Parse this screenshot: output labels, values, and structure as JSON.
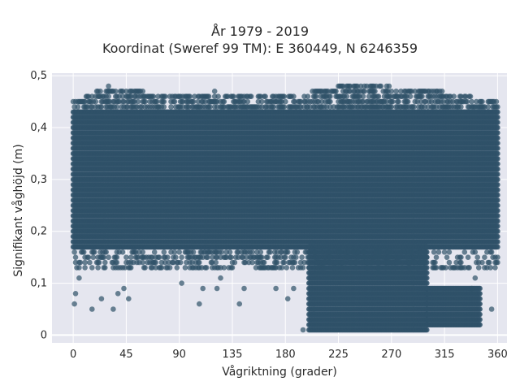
{
  "chart_data": {
    "type": "scatter",
    "title_line1": "År 1979 - 2019",
    "title_line2": "Koordinat (Sweref 99 TM): E 360449, N 6246359",
    "xlabel": "Vågriktning (grader)",
    "ylabel": "Signifikant våghöjd (m)",
    "xlim": [
      -18,
      368
    ],
    "ylim": [
      -0.015,
      0.505
    ],
    "x_ticks": [
      "0",
      "45",
      "90",
      "135",
      "180",
      "225",
      "270",
      "315",
      "360"
    ],
    "x_tick_values": [
      0,
      45,
      90,
      135,
      180,
      225,
      270,
      315,
      360
    ],
    "y_ticks": [
      "0",
      "0,1",
      "0,2",
      "0,3",
      "0,4",
      "0,5"
    ],
    "y_tick_values": [
      0,
      0.1,
      0.2,
      0.3,
      0.4,
      0.5
    ],
    "grid": true,
    "marker_color": "#2f5168",
    "plot_background": "#e5e6ef",
    "x_step_deg": 1,
    "dense_bands": [
      {
        "x_from": 0,
        "x_to": 360,
        "y_from": 0.17,
        "y_to": 0.43
      },
      {
        "x_from": 200,
        "x_to": 300,
        "y_from": 0.01,
        "y_to": 0.17
      },
      {
        "x_from": 300,
        "x_to": 345,
        "y_from": 0.02,
        "y_to": 0.09
      }
    ],
    "upper_envelope": [
      {
        "x": 0,
        "y": 0.45
      },
      {
        "x": 30,
        "y": 0.48
      },
      {
        "x": 60,
        "y": 0.47
      },
      {
        "x": 90,
        "y": 0.46
      },
      {
        "x": 120,
        "y": 0.47
      },
      {
        "x": 180,
        "y": 0.46
      },
      {
        "x": 225,
        "y": 0.48
      },
      {
        "x": 270,
        "y": 0.48
      },
      {
        "x": 315,
        "y": 0.47
      },
      {
        "x": 360,
        "y": 0.45
      }
    ],
    "scattered_low_points": [
      {
        "x": 1,
        "y": 0.06
      },
      {
        "x": 2,
        "y": 0.08
      },
      {
        "x": 5,
        "y": 0.11
      },
      {
        "x": 16,
        "y": 0.05
      },
      {
        "x": 24,
        "y": 0.07
      },
      {
        "x": 34,
        "y": 0.05
      },
      {
        "x": 38,
        "y": 0.08
      },
      {
        "x": 43,
        "y": 0.09
      },
      {
        "x": 47,
        "y": 0.07
      },
      {
        "x": 92,
        "y": 0.1
      },
      {
        "x": 107,
        "y": 0.06
      },
      {
        "x": 110,
        "y": 0.09
      },
      {
        "x": 122,
        "y": 0.09
      },
      {
        "x": 125,
        "y": 0.11
      },
      {
        "x": 141,
        "y": 0.06
      },
      {
        "x": 145,
        "y": 0.09
      },
      {
        "x": 172,
        "y": 0.09
      },
      {
        "x": 182,
        "y": 0.07
      },
      {
        "x": 187,
        "y": 0.09
      },
      {
        "x": 195,
        "y": 0.01
      },
      {
        "x": 204,
        "y": 0.05
      },
      {
        "x": 338,
        "y": 0.09
      },
      {
        "x": 341,
        "y": 0.11
      },
      {
        "x": 355,
        "y": 0.05
      }
    ]
  }
}
